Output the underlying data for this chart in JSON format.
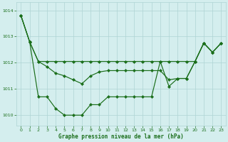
{
  "series1": [
    1013.8,
    1012.8,
    1012.05,
    1012.05,
    1012.05,
    1012.05,
    1012.05,
    1012.05,
    1012.05,
    1012.05,
    1012.05,
    1012.05,
    1012.05,
    1012.05,
    1012.05,
    1012.05,
    1012.05,
    1012.05,
    1012.05,
    1012.05,
    1012.05,
    1012.75,
    1012.4,
    1012.75
  ],
  "series2": [
    1013.8,
    1012.8,
    1010.7,
    1010.7,
    1010.25,
    1010.0,
    1010.0,
    1010.0,
    1010.4,
    1010.4,
    1010.7,
    1010.7,
    1010.7,
    1010.7,
    1010.7,
    1010.7,
    1012.05,
    1011.1,
    1011.4,
    1011.4,
    1012.05,
    1012.75,
    1012.4,
    1012.75
  ],
  "series3": [
    1013.8,
    1012.8,
    1012.05,
    1011.85,
    1011.6,
    1011.5,
    1011.35,
    1011.2,
    1011.5,
    1011.65,
    1011.7,
    1011.7,
    1011.7,
    1011.7,
    1011.7,
    1011.7,
    1011.7,
    1011.35,
    1011.4,
    1011.4,
    1012.05,
    1012.75,
    1012.4,
    1012.75
  ],
  "x": [
    0,
    1,
    2,
    3,
    4,
    5,
    6,
    7,
    8,
    9,
    10,
    11,
    12,
    13,
    14,
    15,
    16,
    17,
    18,
    19,
    20,
    21,
    22,
    23
  ],
  "ylim": [
    1009.6,
    1014.3
  ],
  "yticks": [
    1010,
    1011,
    1012,
    1013,
    1014
  ],
  "xticks": [
    0,
    1,
    2,
    3,
    4,
    5,
    6,
    7,
    8,
    9,
    10,
    11,
    12,
    13,
    14,
    15,
    16,
    17,
    18,
    19,
    20,
    21,
    22,
    23
  ],
  "line_color": "#1a6e1a",
  "bg_color": "#d4eeee",
  "grid_color": "#aed4d4",
  "xlabel": "Graphe pression niveau de la mer (hPa)",
  "marker_size": 2.2,
  "linewidth": 0.85
}
